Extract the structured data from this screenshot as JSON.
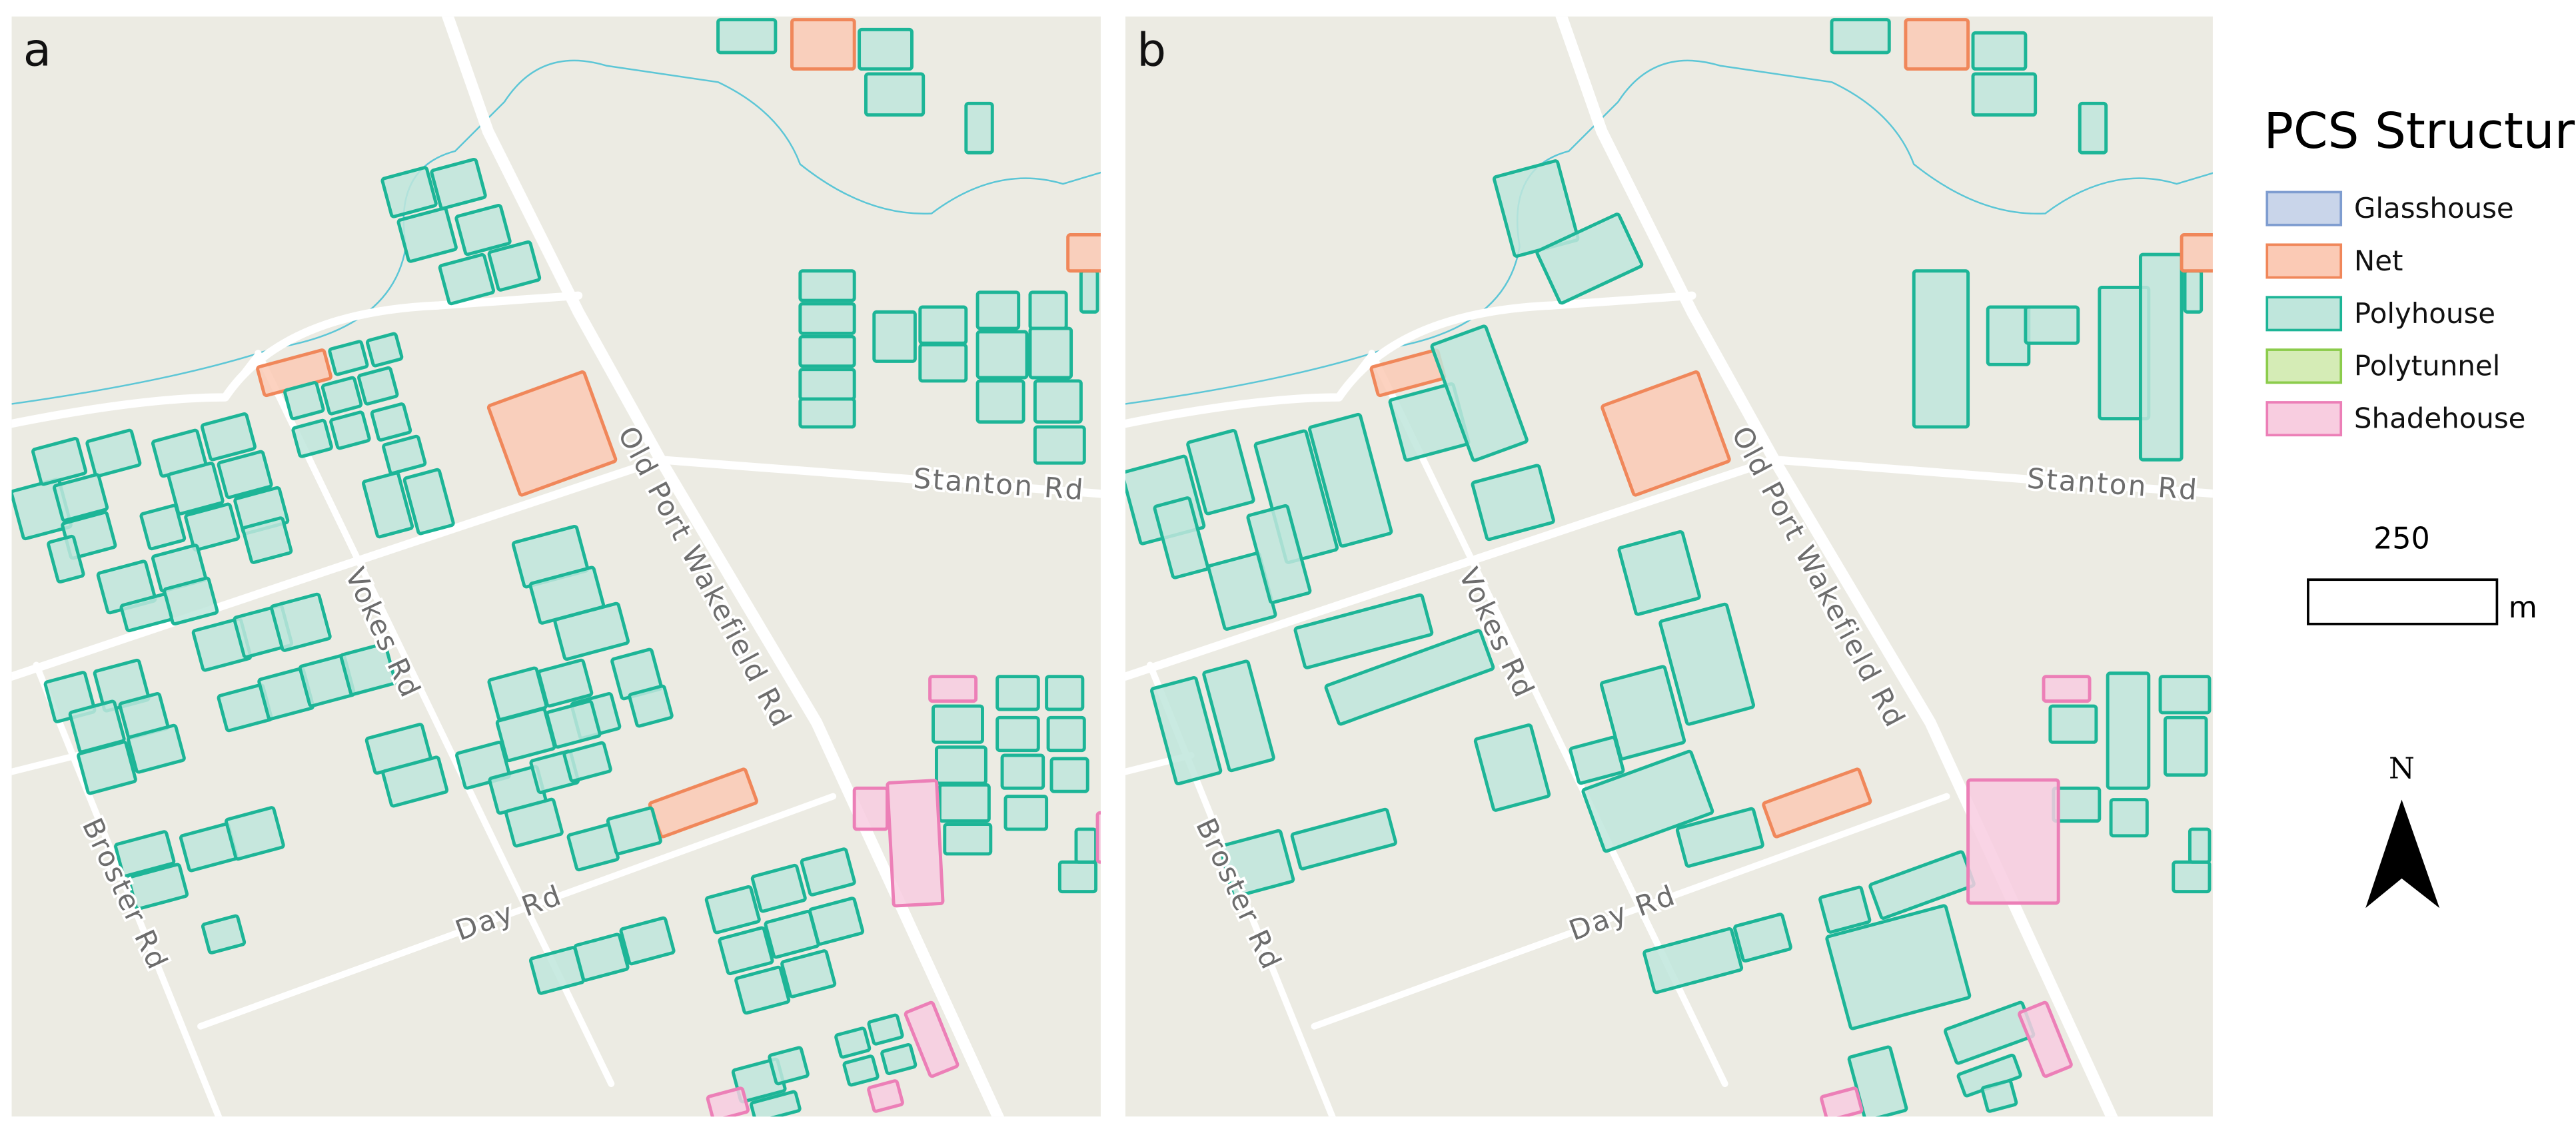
{
  "panels": [
    {
      "label": "a",
      "roads": [
        "Stanton Rd",
        "Old Port Wakefield Rd",
        "Vokes Rd",
        "Broster Rd",
        "Day Rd"
      ]
    },
    {
      "label": "b",
      "roads": [
        "Stanton Rd",
        "Old Port Wakefield Rd",
        "Vokes Rd",
        "Broster Rd",
        "Day Rd"
      ]
    }
  ],
  "legend": {
    "title": "PCS Structure",
    "items": [
      {
        "name": "Glasshouse",
        "fill": "#c9d5ea",
        "stroke": "#7f9dd0"
      },
      {
        "name": "Net",
        "fill": "#fbcab5",
        "stroke": "#f0875a"
      },
      {
        "name": "Polyhouse",
        "fill": "#bfe6dc",
        "stroke": "#1db597"
      },
      {
        "name": "Polytunnel",
        "fill": "#d5ecb6",
        "stroke": "#8ccc4c"
      },
      {
        "name": "Shadehouse",
        "fill": "#f8cde0",
        "stroke": "#ec7fb7"
      }
    ]
  },
  "scale_bar": {
    "distance": "250",
    "unit": "m"
  },
  "north_arrow": {
    "label": "N"
  }
}
